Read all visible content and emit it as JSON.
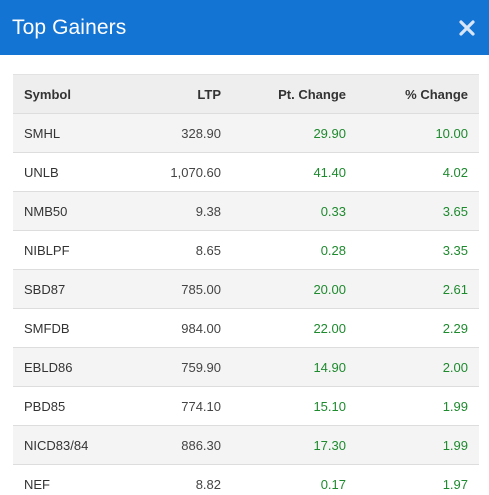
{
  "modal": {
    "title": "Top Gainers",
    "close_icon": "close-icon"
  },
  "table": {
    "headers": [
      "Symbol",
      "LTP",
      "Pt. Change",
      "% Change"
    ],
    "rows": [
      {
        "symbol": "SMHL",
        "ltp": "328.90",
        "pt_change": "29.90",
        "pct_change": "10.00"
      },
      {
        "symbol": "UNLB",
        "ltp": "1,070.60",
        "pt_change": "41.40",
        "pct_change": "4.02"
      },
      {
        "symbol": "NMB50",
        "ltp": "9.38",
        "pt_change": "0.33",
        "pct_change": "3.65"
      },
      {
        "symbol": "NIBLPF",
        "ltp": "8.65",
        "pt_change": "0.28",
        "pct_change": "3.35"
      },
      {
        "symbol": "SBD87",
        "ltp": "785.00",
        "pt_change": "20.00",
        "pct_change": "2.61"
      },
      {
        "symbol": "SMFDB",
        "ltp": "984.00",
        "pt_change": "22.00",
        "pct_change": "2.29"
      },
      {
        "symbol": "EBLD86",
        "ltp": "759.90",
        "pt_change": "14.90",
        "pct_change": "2.00"
      },
      {
        "symbol": "PBD85",
        "ltp": "774.10",
        "pt_change": "15.10",
        "pct_change": "1.99"
      },
      {
        "symbol": "NICD83/84",
        "ltp": "886.30",
        "pt_change": "17.30",
        "pct_change": "1.99"
      },
      {
        "symbol": "NEF",
        "ltp": "8.82",
        "pt_change": "0.17",
        "pct_change": "1.97"
      }
    ]
  },
  "colors": {
    "header_bg": "#1474d4",
    "positive": "#1e8a2e"
  }
}
